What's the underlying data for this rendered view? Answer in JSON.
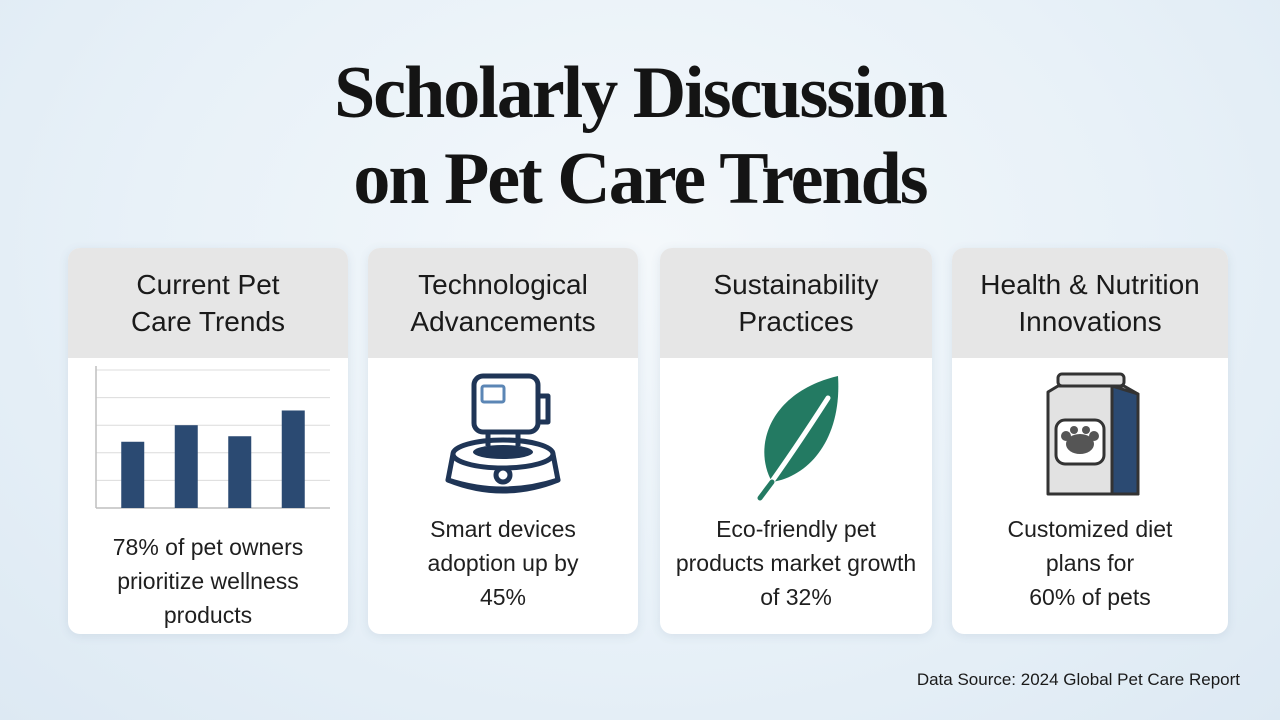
{
  "title": {
    "line1": "Scholarly Discussion",
    "line2": "on Pet Care Trends"
  },
  "cards": [
    {
      "heading": [
        "Current Pet",
        "Care Trends"
      ],
      "icon": "bar-chart-icon",
      "text": [
        "78% of pet owners",
        "prioritize wellness",
        "products"
      ]
    },
    {
      "heading": [
        "Technological",
        "Advancements"
      ],
      "icon": "smart-pet-bowl-icon",
      "text": [
        "Smart devices",
        "adoption up by",
        "45%"
      ]
    },
    {
      "heading": [
        "Sustainability",
        "Practices"
      ],
      "icon": "leaf-icon",
      "text": [
        "Eco-friendly pet",
        "products market growth",
        "of 32%"
      ]
    },
    {
      "heading": [
        "Health & Nutrition",
        "Innovations"
      ],
      "icon": "pet-food-bag-icon",
      "text": [
        "Customized diet",
        "plans for",
        "60% of pets"
      ]
    }
  ],
  "chart_data": {
    "type": "bar",
    "values": [
      72,
      90,
      78,
      106
    ],
    "ylim": [
      0,
      150
    ],
    "grid": true,
    "color": "#2b4a72"
  },
  "colors": {
    "navy": "#2b4a72",
    "leaf": "#237a62",
    "header_gray": "#e6e6e6"
  },
  "source": "Data Source: 2024 Global Pet Care Report"
}
